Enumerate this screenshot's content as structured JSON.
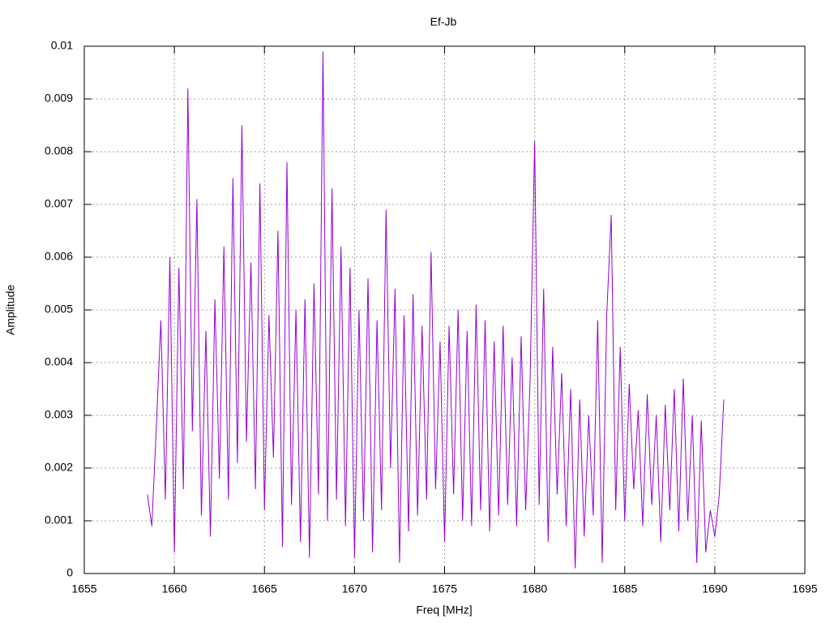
{
  "chart_data": {
    "type": "line",
    "title": "Ef-Jb",
    "xlabel": "Freq [MHz]",
    "ylabel": "Amplitude",
    "color": "#9400d3",
    "grid": true,
    "xlim": [
      1655,
      1695
    ],
    "xticks": [
      1655,
      1660,
      1665,
      1670,
      1675,
      1680,
      1685,
      1690,
      1695
    ],
    "ylim": [
      0,
      0.01
    ],
    "yticks": [
      0,
      0.001,
      0.002,
      0.003,
      0.004,
      0.005,
      0.006,
      0.007,
      0.008,
      0.009,
      0.01
    ],
    "x": [
      1658.5,
      1658.75,
      1659,
      1659.25,
      1659.5,
      1659.75,
      1660,
      1660.25,
      1660.5,
      1660.75,
      1661,
      1661.25,
      1661.5,
      1661.75,
      1662,
      1662.25,
      1662.5,
      1662.75,
      1663,
      1663.25,
      1663.5,
      1663.75,
      1664,
      1664.25,
      1664.5,
      1664.75,
      1665,
      1665.25,
      1665.5,
      1665.75,
      1666,
      1666.25,
      1666.5,
      1666.75,
      1667,
      1667.25,
      1667.5,
      1667.75,
      1668,
      1668.25,
      1668.5,
      1668.75,
      1669,
      1669.25,
      1669.5,
      1669.75,
      1670,
      1670.25,
      1670.5,
      1670.75,
      1671,
      1671.25,
      1671.5,
      1671.75,
      1672,
      1672.25,
      1672.5,
      1672.75,
      1673,
      1673.25,
      1673.5,
      1673.75,
      1674,
      1674.25,
      1674.5,
      1674.75,
      1675,
      1675.25,
      1675.5,
      1675.75,
      1676,
      1676.25,
      1676.5,
      1676.75,
      1677,
      1677.25,
      1677.5,
      1677.75,
      1678,
      1678.25,
      1678.5,
      1678.75,
      1679,
      1679.25,
      1679.5,
      1679.75,
      1680,
      1680.25,
      1680.5,
      1680.75,
      1681,
      1681.25,
      1681.5,
      1681.75,
      1682,
      1682.25,
      1682.5,
      1682.75,
      1683,
      1683.25,
      1683.5,
      1683.75,
      1684,
      1684.25,
      1684.5,
      1684.75,
      1685,
      1685.25,
      1685.5,
      1685.75,
      1686,
      1686.25,
      1686.5,
      1686.75,
      1687,
      1687.25,
      1687.5,
      1687.75,
      1688,
      1688.25,
      1688.5,
      1688.75,
      1689,
      1689.25,
      1689.5,
      1689.75,
      1690,
      1690.25,
      1690.5
    ],
    "values": [
      0.0015,
      0.0009,
      0.0028,
      0.0048,
      0.0014,
      0.006,
      0.0004,
      0.0058,
      0.0016,
      0.0092,
      0.0027,
      0.0071,
      0.0011,
      0.0046,
      0.0007,
      0.0052,
      0.0018,
      0.0062,
      0.0014,
      0.0075,
      0.0021,
      0.0085,
      0.0025,
      0.0059,
      0.0016,
      0.0074,
      0.0012,
      0.0049,
      0.0022,
      0.0065,
      0.0005,
      0.0078,
      0.0013,
      0.005,
      0.0006,
      0.0052,
      0.0003,
      0.0055,
      0.0015,
      0.0099,
      0.001,
      0.0073,
      0.0014,
      0.0062,
      0.0009,
      0.0058,
      0.0003,
      0.005,
      0.001,
      0.0056,
      0.0004,
      0.0048,
      0.0012,
      0.0069,
      0.002,
      0.0054,
      0.0002,
      0.0049,
      0.0008,
      0.0053,
      0.0011,
      0.0047,
      0.0014,
      0.0061,
      0.0016,
      0.0044,
      0.0006,
      0.0047,
      0.0015,
      0.005,
      0.001,
      0.0046,
      0.0009,
      0.0051,
      0.0012,
      0.0048,
      0.0008,
      0.0044,
      0.0011,
      0.0047,
      0.0013,
      0.0041,
      0.0009,
      0.0045,
      0.0012,
      0.0037,
      0.0082,
      0.0013,
      0.0054,
      0.0006,
      0.0043,
      0.0015,
      0.0038,
      0.0009,
      0.0035,
      0.0001,
      0.0033,
      0.0007,
      0.003,
      0.0011,
      0.0048,
      0.0002,
      0.0049,
      0.0068,
      0.0012,
      0.0043,
      0.001,
      0.0036,
      0.0016,
      0.0031,
      0.0009,
      0.0034,
      0.0013,
      0.003,
      0.0006,
      0.0032,
      0.0012,
      0.0035,
      0.0008,
      0.0037,
      0.001,
      0.003,
      0.0002,
      0.0029,
      0.0004,
      0.0012,
      0.0007,
      0.0015,
      0.0033
    ]
  }
}
